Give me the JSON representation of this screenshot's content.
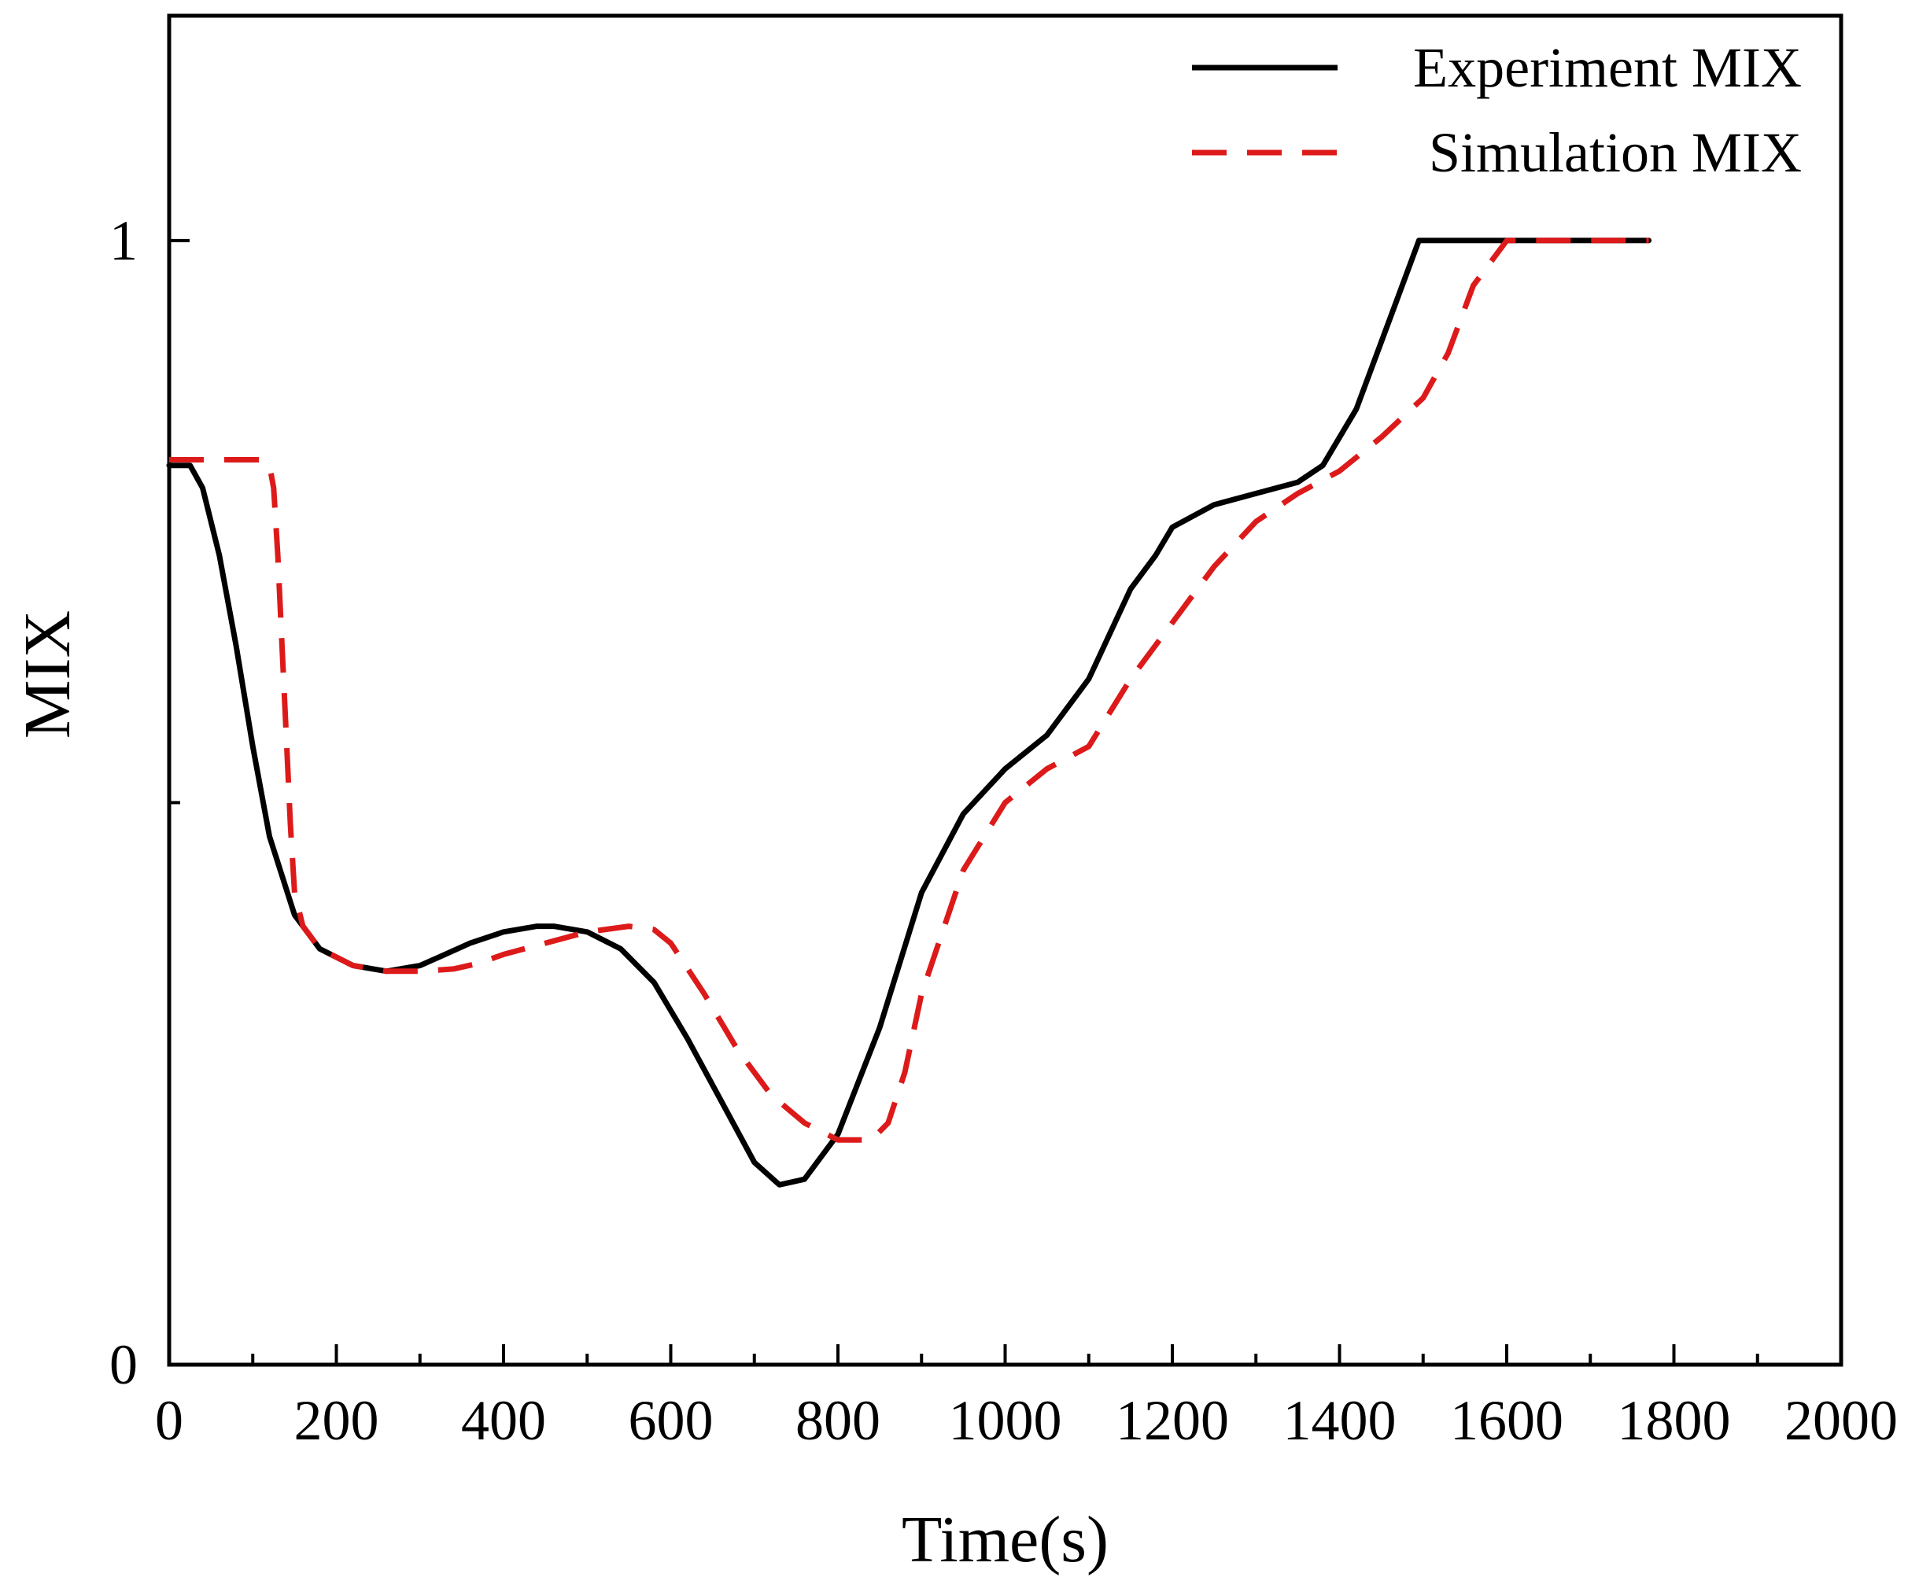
{
  "chart_data": {
    "type": "line",
    "title": "",
    "xlabel": "Time(s)",
    "ylabel": "MIX",
    "xlim": [
      0,
      2000
    ],
    "ylim": [
      0,
      1.2
    ],
    "x_ticks": [
      0,
      200,
      400,
      600,
      800,
      1000,
      1200,
      1400,
      1600,
      1800,
      2000
    ],
    "x_tick_labels": [
      "0",
      "200",
      "400",
      "600",
      "800",
      "1000",
      "1200",
      "1400",
      "1600",
      "1800",
      "2000"
    ],
    "y_major_ticks": [
      0,
      1
    ],
    "y_tick_labels": [
      "0",
      "1"
    ],
    "y_minor_ticks": [
      0.5
    ],
    "legend_position": "top-right",
    "series": [
      {
        "name": "Experiment MIX",
        "color": "#000000",
        "style": "solid",
        "x": [
          0,
          25,
          40,
          60,
          80,
          100,
          120,
          150,
          180,
          220,
          260,
          300,
          330,
          360,
          400,
          440,
          460,
          500,
          540,
          580,
          620,
          660,
          700,
          730,
          760,
          800,
          850,
          900,
          950,
          1000,
          1050,
          1100,
          1150,
          1180,
          1200,
          1250,
          1300,
          1350,
          1380,
          1420,
          1460,
          1495,
          1500,
          1600,
          1770
        ],
        "y": [
          0.8,
          0.8,
          0.78,
          0.72,
          0.64,
          0.55,
          0.47,
          0.4,
          0.37,
          0.355,
          0.35,
          0.355,
          0.365,
          0.375,
          0.385,
          0.39,
          0.39,
          0.385,
          0.37,
          0.34,
          0.29,
          0.235,
          0.18,
          0.16,
          0.165,
          0.205,
          0.3,
          0.42,
          0.49,
          0.53,
          0.56,
          0.61,
          0.69,
          0.72,
          0.745,
          0.765,
          0.775,
          0.785,
          0.8,
          0.85,
          0.93,
          1.0,
          1.0,
          1.0,
          1.0
        ],
        "values": [
          0.8,
          0.8,
          0.78,
          0.72,
          0.64,
          0.55,
          0.47,
          0.4,
          0.37,
          0.355,
          0.35,
          0.355,
          0.365,
          0.375,
          0.385,
          0.39,
          0.39,
          0.385,
          0.37,
          0.34,
          0.29,
          0.235,
          0.18,
          0.16,
          0.165,
          0.205,
          0.3,
          0.42,
          0.49,
          0.53,
          0.56,
          0.61,
          0.69,
          0.72,
          0.745,
          0.765,
          0.775,
          0.785,
          0.8,
          0.85,
          0.93,
          1.0,
          1.0,
          1.0,
          1.0
        ]
      },
      {
        "name": "Simulation MIX",
        "color": "#dd1a1a",
        "style": "dashed",
        "x": [
          0,
          110,
          120,
          125,
          130,
          135,
          140,
          145,
          150,
          160,
          180,
          220,
          260,
          300,
          340,
          370,
          400,
          450,
          500,
          550,
          580,
          600,
          640,
          680,
          720,
          760,
          800,
          840,
          860,
          880,
          900,
          950,
          1000,
          1050,
          1100,
          1150,
          1200,
          1250,
          1300,
          1350,
          1400,
          1450,
          1500,
          1530,
          1560,
          1600,
          1770
        ],
        "y": [
          0.805,
          0.805,
          0.8,
          0.78,
          0.72,
          0.64,
          0.56,
          0.48,
          0.42,
          0.39,
          0.37,
          0.355,
          0.35,
          0.35,
          0.352,
          0.357,
          0.365,
          0.375,
          0.385,
          0.39,
          0.387,
          0.375,
          0.33,
          0.28,
          0.24,
          0.215,
          0.2,
          0.2,
          0.215,
          0.26,
          0.33,
          0.44,
          0.5,
          0.53,
          0.55,
          0.61,
          0.66,
          0.71,
          0.75,
          0.775,
          0.795,
          0.825,
          0.86,
          0.9,
          0.96,
          1.0,
          1.0
        ],
        "values": [
          0.805,
          0.805,
          0.8,
          0.78,
          0.72,
          0.64,
          0.56,
          0.48,
          0.42,
          0.39,
          0.37,
          0.355,
          0.35,
          0.35,
          0.352,
          0.357,
          0.365,
          0.375,
          0.385,
          0.39,
          0.387,
          0.375,
          0.33,
          0.28,
          0.24,
          0.215,
          0.2,
          0.2,
          0.215,
          0.26,
          0.33,
          0.44,
          0.5,
          0.53,
          0.55,
          0.61,
          0.66,
          0.71,
          0.75,
          0.775,
          0.795,
          0.825,
          0.86,
          0.9,
          0.96,
          1.0,
          1.0
        ]
      }
    ]
  }
}
